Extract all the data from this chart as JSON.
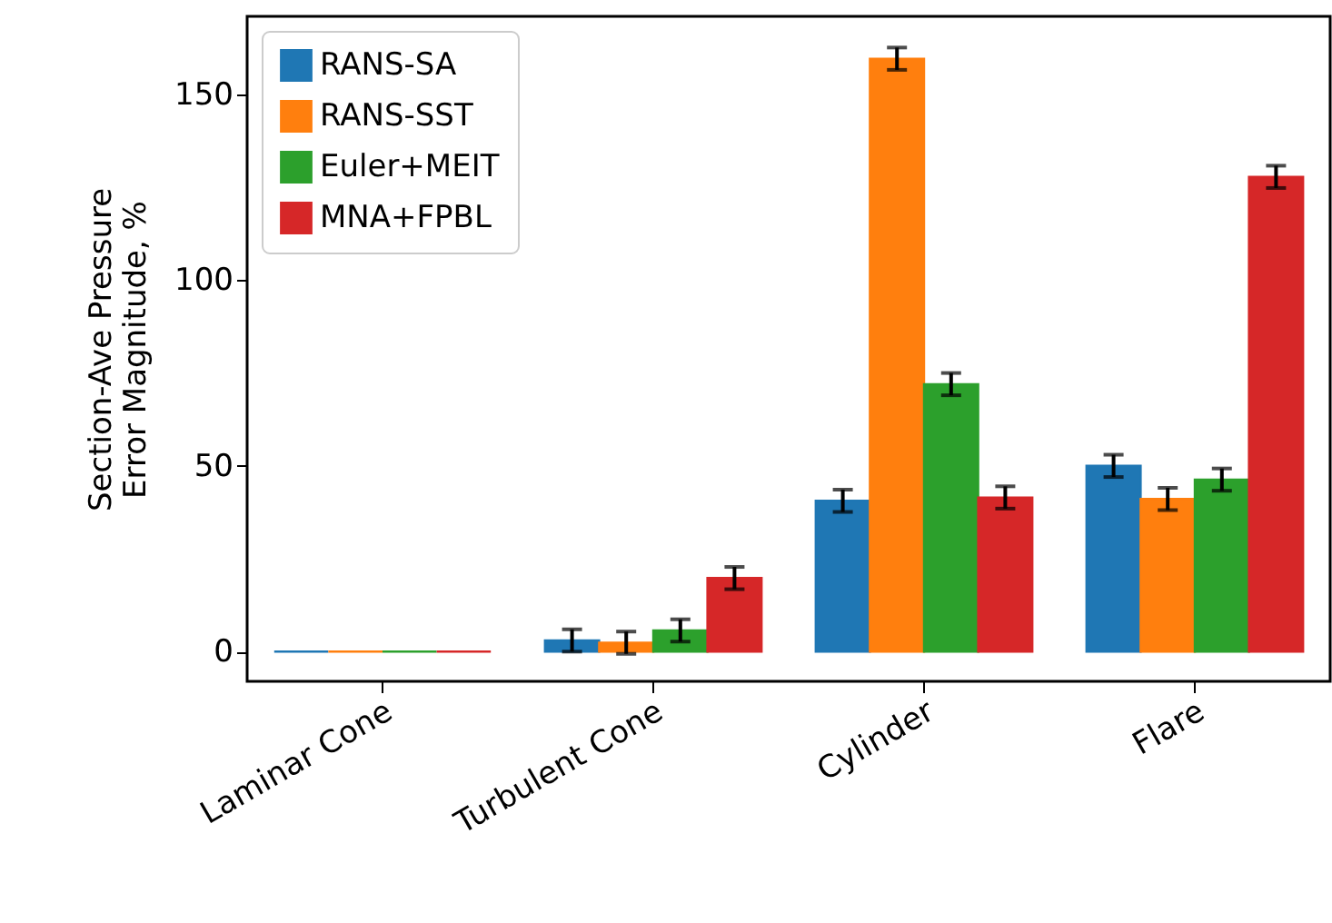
{
  "chart_data": {
    "type": "bar",
    "ylabel": "Section-Ave Pressure\nError Magnitude, %",
    "categories": [
      "Laminar Cone",
      "Turbulent Cone",
      "Cylinder",
      "Flare"
    ],
    "series": [
      {
        "name": "RANS-SA",
        "color": "#1f77b4",
        "values": [
          0,
          3,
          40.6,
          50
        ],
        "errors": [
          null,
          3,
          3,
          3
        ]
      },
      {
        "name": "RANS-SST",
        "color": "#ff7f0e",
        "values": [
          0,
          2.4,
          159.6,
          41.1
        ],
        "errors": [
          null,
          3,
          3,
          3
        ]
      },
      {
        "name": "Euler+MEIT",
        "color": "#2ca02c",
        "values": [
          0,
          5.7,
          72,
          46.3
        ],
        "errors": [
          null,
          3,
          3,
          3
        ]
      },
      {
        "name": "MNA+FPBL",
        "color": "#d62728",
        "values": [
          0,
          19.8,
          41.5,
          127.8
        ],
        "errors": [
          null,
          3,
          3,
          3
        ]
      }
    ],
    "ylim": [
      -8,
      171
    ],
    "yticks": [
      0,
      50,
      100,
      150
    ],
    "legend": "top left"
  }
}
